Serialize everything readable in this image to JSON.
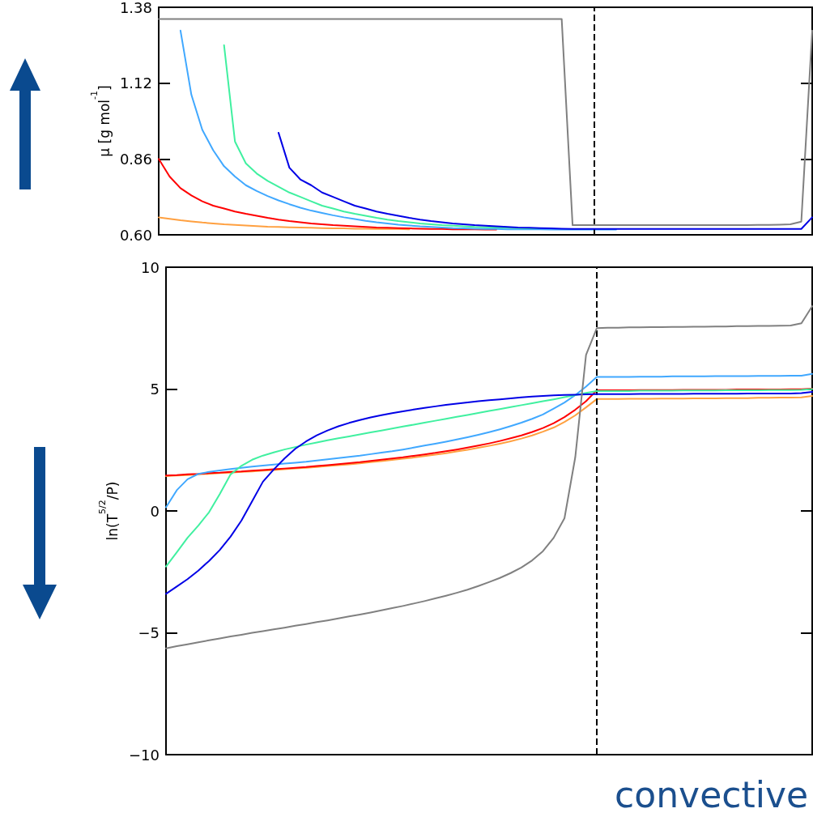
{
  "chart_data": [
    {
      "type": "line",
      "ylabel": "μ [g mol$^{-1}$]",
      "categories": [
        null,
        null,
        null,
        null,
        null,
        null,
        null,
        null,
        null,
        null,
        null,
        null,
        null,
        null,
        null,
        null,
        null,
        null,
        null,
        null,
        null,
        null,
        null,
        null,
        null,
        null,
        null,
        null,
        null,
        null,
        null,
        null,
        null,
        null,
        null,
        null,
        null,
        null,
        null,
        null,
        null,
        null,
        null,
        null,
        null,
        null,
        null,
        null,
        null,
        null,
        null,
        null,
        null,
        null,
        null,
        null,
        null,
        null,
        null,
        null,
        null
      ],
      "ylim": [
        0.6,
        1.38
      ],
      "yticks": [
        {
          "value": 0.6,
          "label": "0.60"
        },
        0.86,
        1.12,
        1.38
      ],
      "tick_labels": "y",
      "grid": false,
      "marker": "none",
      "line_style": "solid",
      "series": [
        {
          "color": "#ffa040",
          "values": [
            0.66,
            0.655,
            0.65,
            0.646,
            0.642,
            0.639,
            0.636,
            0.634,
            0.632,
            0.63,
            0.628,
            0.627,
            0.626,
            0.625,
            0.624,
            0.623,
            0.622,
            0.622,
            0.621,
            0.621,
            0.62,
            0.62,
            0.62,
            0.619,
            null,
            null,
            null,
            null,
            null,
            null,
            null,
            null,
            null,
            null,
            null,
            null,
            null,
            null,
            null,
            null,
            null,
            null,
            null,
            null,
            null,
            null,
            null,
            null,
            null,
            null,
            null,
            null,
            null,
            null,
            null,
            null,
            null,
            null,
            null,
            null,
            null
          ]
        },
        {
          "color": "#ff0000",
          "values": [
            0.86,
            0.8,
            0.76,
            0.735,
            0.715,
            0.7,
            0.69,
            0.68,
            0.672,
            0.665,
            0.658,
            0.652,
            0.647,
            0.643,
            0.639,
            0.636,
            0.633,
            0.631,
            0.629,
            0.627,
            0.625,
            0.624,
            0.623,
            0.622,
            0.621,
            0.62,
            0.62,
            0.619,
            0.619,
            0.619,
            0.618,
            0.618,
            null,
            null,
            null,
            null,
            null,
            null,
            null,
            null,
            null,
            null,
            null,
            null,
            null,
            null,
            null,
            null,
            null,
            null,
            null,
            null,
            null,
            null,
            null,
            null,
            null,
            null,
            null,
            null,
            null
          ]
        },
        {
          "color": "#40a8ff",
          "values": [
            null,
            null,
            1.3,
            1.08,
            0.96,
            0.89,
            0.835,
            0.8,
            0.77,
            0.75,
            0.733,
            0.718,
            0.705,
            0.693,
            0.683,
            0.675,
            0.667,
            0.66,
            0.654,
            0.648,
            0.643,
            0.639,
            0.635,
            0.632,
            0.629,
            0.627,
            0.625,
            0.623,
            0.622,
            0.621,
            0.62,
            0.62,
            0.619,
            0.619,
            0.619,
            0.619,
            0.618,
            0.618,
            0.618,
            0.618,
            0.618,
            0.618,
            0.618,
            null,
            null,
            null,
            null,
            null,
            null,
            null,
            null,
            null,
            null,
            null,
            null,
            null,
            null,
            null,
            null,
            null,
            null
          ]
        },
        {
          "color": "#40f0a0",
          "values": [
            null,
            null,
            null,
            null,
            null,
            null,
            1.25,
            0.92,
            0.845,
            0.81,
            0.785,
            0.765,
            0.745,
            0.73,
            0.715,
            0.7,
            0.69,
            0.68,
            0.672,
            0.665,
            0.658,
            0.652,
            0.647,
            0.643,
            0.639,
            0.636,
            0.633,
            0.631,
            0.629,
            0.627,
            0.626,
            0.625,
            0.624,
            0.623,
            0.622,
            0.622,
            null,
            null,
            null,
            null,
            null,
            null,
            null,
            null,
            null,
            null,
            null,
            null,
            null,
            null,
            null,
            null,
            null,
            null,
            null,
            null,
            null,
            null,
            null,
            null,
            null
          ]
        },
        {
          "color": "#0000e6",
          "values": [
            null,
            null,
            null,
            null,
            null,
            null,
            null,
            null,
            null,
            null,
            null,
            0.95,
            0.83,
            0.79,
            0.77,
            0.745,
            0.73,
            0.715,
            0.7,
            0.69,
            0.68,
            0.672,
            0.665,
            0.658,
            0.652,
            0.647,
            0.643,
            0.639,
            0.636,
            0.633,
            0.631,
            0.629,
            0.627,
            0.625,
            0.624,
            0.623,
            0.622,
            0.621,
            0.62,
            0.62,
            0.62,
            0.62,
            0.62,
            0.62,
            0.62,
            0.62,
            0.62,
            0.62,
            0.62,
            0.62,
            0.62,
            0.62,
            0.62,
            0.62,
            0.62,
            0.62,
            0.62,
            0.62,
            0.62,
            0.62,
            0.66
          ]
        },
        {
          "color": "#808080",
          "values": [
            1.34,
            1.34,
            1.34,
            1.34,
            1.34,
            1.34,
            1.34,
            1.34,
            1.34,
            1.34,
            1.34,
            1.34,
            1.34,
            1.34,
            1.34,
            1.34,
            1.34,
            1.34,
            1.34,
            1.34,
            1.34,
            1.34,
            1.34,
            1.34,
            1.34,
            1.34,
            1.34,
            1.34,
            1.34,
            1.34,
            1.34,
            1.34,
            1.34,
            1.34,
            1.34,
            1.34,
            1.34,
            1.34,
            0.633,
            0.633,
            0.633,
            0.633,
            0.633,
            0.633,
            0.633,
            0.633,
            0.633,
            0.633,
            0.633,
            0.633,
            0.633,
            0.633,
            0.633,
            0.633,
            0.633,
            0.634,
            0.634,
            0.635,
            0.636,
            0.645,
            1.3
          ]
        }
      ]
    },
    {
      "type": "line",
      "ylabel": "ln(T$^{5/2}$/P)",
      "annotations": [
        "convective"
      ],
      "categories": [
        null,
        null,
        null,
        null,
        null,
        null,
        null,
        null,
        null,
        null,
        null,
        null,
        null,
        null,
        null,
        null,
        null,
        null,
        null,
        null,
        null,
        null,
        null,
        null,
        null,
        null,
        null,
        null,
        null,
        null,
        null,
        null,
        null,
        null,
        null,
        null,
        null,
        null,
        null,
        null,
        null,
        null,
        null,
        null,
        null,
        null,
        null,
        null,
        null,
        null,
        null,
        null,
        null,
        null,
        null,
        null,
        null,
        null,
        null,
        null,
        null
      ],
      "ylim": [
        -10,
        10
      ],
      "yticks": [
        {
          "value": -10,
          "label": "−10"
        },
        {
          "value": -5,
          "label": "−5"
        },
        0,
        5,
        10
      ],
      "tick_labels": "y",
      "grid": false,
      "marker": "none",
      "line_style": "solid",
      "series": [
        {
          "color": "#ffa040",
          "values": [
            1.43,
            1.45,
            1.47,
            1.5,
            1.52,
            1.55,
            1.57,
            1.6,
            1.62,
            1.65,
            1.68,
            1.71,
            1.74,
            1.77,
            1.8,
            1.84,
            1.88,
            1.91,
            1.95,
            2.0,
            2.04,
            2.09,
            2.14,
            2.19,
            2.25,
            2.31,
            2.37,
            2.44,
            2.51,
            2.59,
            2.67,
            2.76,
            2.86,
            2.97,
            3.1,
            3.25,
            3.42,
            3.65,
            3.92,
            4.25,
            4.59,
            4.59,
            4.59,
            4.6,
            4.6,
            4.6,
            4.61,
            4.61,
            4.61,
            4.62,
            4.62,
            4.62,
            4.63,
            4.63,
            4.63,
            4.64,
            4.64,
            4.65,
            4.65,
            4.66,
            4.72
          ]
        },
        {
          "color": "#ff0000",
          "values": [
            1.45,
            1.47,
            1.5,
            1.52,
            1.55,
            1.57,
            1.6,
            1.62,
            1.65,
            1.68,
            1.71,
            1.74,
            1.77,
            1.8,
            1.84,
            1.88,
            1.92,
            1.96,
            2.0,
            2.05,
            2.1,
            2.15,
            2.2,
            2.26,
            2.32,
            2.38,
            2.45,
            2.52,
            2.6,
            2.68,
            2.77,
            2.87,
            2.98,
            3.1,
            3.24,
            3.4,
            3.6,
            3.85,
            4.15,
            4.5,
            4.95,
            4.95,
            4.95,
            4.95,
            4.96,
            4.96,
            4.96,
            4.96,
            4.97,
            4.97,
            4.97,
            4.97,
            4.97,
            4.98,
            4.98,
            4.98,
            4.98,
            4.98,
            4.99,
            4.99,
            5.02
          ]
        },
        {
          "color": "#40a8ff",
          "values": [
            0.15,
            0.85,
            1.3,
            1.52,
            1.6,
            1.66,
            1.72,
            1.77,
            1.82,
            1.86,
            1.9,
            1.94,
            1.98,
            2.02,
            2.07,
            2.12,
            2.17,
            2.22,
            2.27,
            2.33,
            2.39,
            2.45,
            2.52,
            2.6,
            2.68,
            2.76,
            2.84,
            2.93,
            3.02,
            3.12,
            3.23,
            3.35,
            3.48,
            3.62,
            3.78,
            3.96,
            4.2,
            4.45,
            4.75,
            5.1,
            5.5,
            5.5,
            5.5,
            5.5,
            5.51,
            5.51,
            5.51,
            5.52,
            5.52,
            5.52,
            5.52,
            5.53,
            5.53,
            5.53,
            5.53,
            5.54,
            5.54,
            5.54,
            5.55,
            5.55,
            5.62
          ]
        },
        {
          "color": "#40f0a0",
          "values": [
            -2.28,
            -1.7,
            -1.1,
            -0.6,
            -0.05,
            0.7,
            1.5,
            1.85,
            2.1,
            2.27,
            2.4,
            2.52,
            2.62,
            2.72,
            2.81,
            2.9,
            2.98,
            3.06,
            3.14,
            3.22,
            3.3,
            3.38,
            3.46,
            3.54,
            3.62,
            3.7,
            3.78,
            3.86,
            3.94,
            4.02,
            4.1,
            4.18,
            4.26,
            4.34,
            4.42,
            4.5,
            4.58,
            4.67,
            4.75,
            4.84,
            4.92,
            4.92,
            4.92,
            4.92,
            4.93,
            4.93,
            4.93,
            4.93,
            4.94,
            4.94,
            4.94,
            4.94,
            4.95,
            4.95,
            4.95,
            4.95,
            4.96,
            4.96,
            4.96,
            4.97,
            5.0
          ]
        },
        {
          "color": "#0000e6",
          "values": [
            -3.4,
            -3.1,
            -2.8,
            -2.45,
            -2.05,
            -1.6,
            -1.05,
            -0.4,
            0.4,
            1.2,
            1.7,
            2.15,
            2.55,
            2.85,
            3.1,
            3.3,
            3.47,
            3.61,
            3.73,
            3.84,
            3.93,
            4.01,
            4.09,
            4.16,
            4.23,
            4.29,
            4.35,
            4.4,
            4.45,
            4.5,
            4.54,
            4.58,
            4.62,
            4.66,
            4.69,
            4.72,
            4.74,
            4.76,
            4.77,
            4.78,
            4.79,
            4.79,
            4.79,
            4.79,
            4.8,
            4.8,
            4.8,
            4.8,
            4.8,
            4.81,
            4.81,
            4.81,
            4.81,
            4.81,
            4.82,
            4.82,
            4.82,
            4.82,
            4.82,
            4.83,
            4.88
          ]
        },
        {
          "color": "#808080",
          "values": [
            -5.64,
            -5.55,
            -5.47,
            -5.39,
            -5.31,
            -5.23,
            -5.15,
            -5.08,
            -5.0,
            -4.93,
            -4.86,
            -4.79,
            -4.71,
            -4.64,
            -4.56,
            -4.49,
            -4.41,
            -4.33,
            -4.25,
            -4.17,
            -4.08,
            -3.99,
            -3.9,
            -3.8,
            -3.7,
            -3.59,
            -3.48,
            -3.36,
            -3.23,
            -3.08,
            -2.92,
            -2.75,
            -2.55,
            -2.32,
            -2.03,
            -1.65,
            -1.1,
            -0.3,
            2.2,
            6.4,
            7.5,
            7.52,
            7.52,
            7.53,
            7.53,
            7.54,
            7.54,
            7.55,
            7.55,
            7.56,
            7.56,
            7.57,
            7.57,
            7.58,
            7.58,
            7.59,
            7.59,
            7.6,
            7.61,
            7.7,
            8.4
          ]
        }
      ]
    }
  ]
}
